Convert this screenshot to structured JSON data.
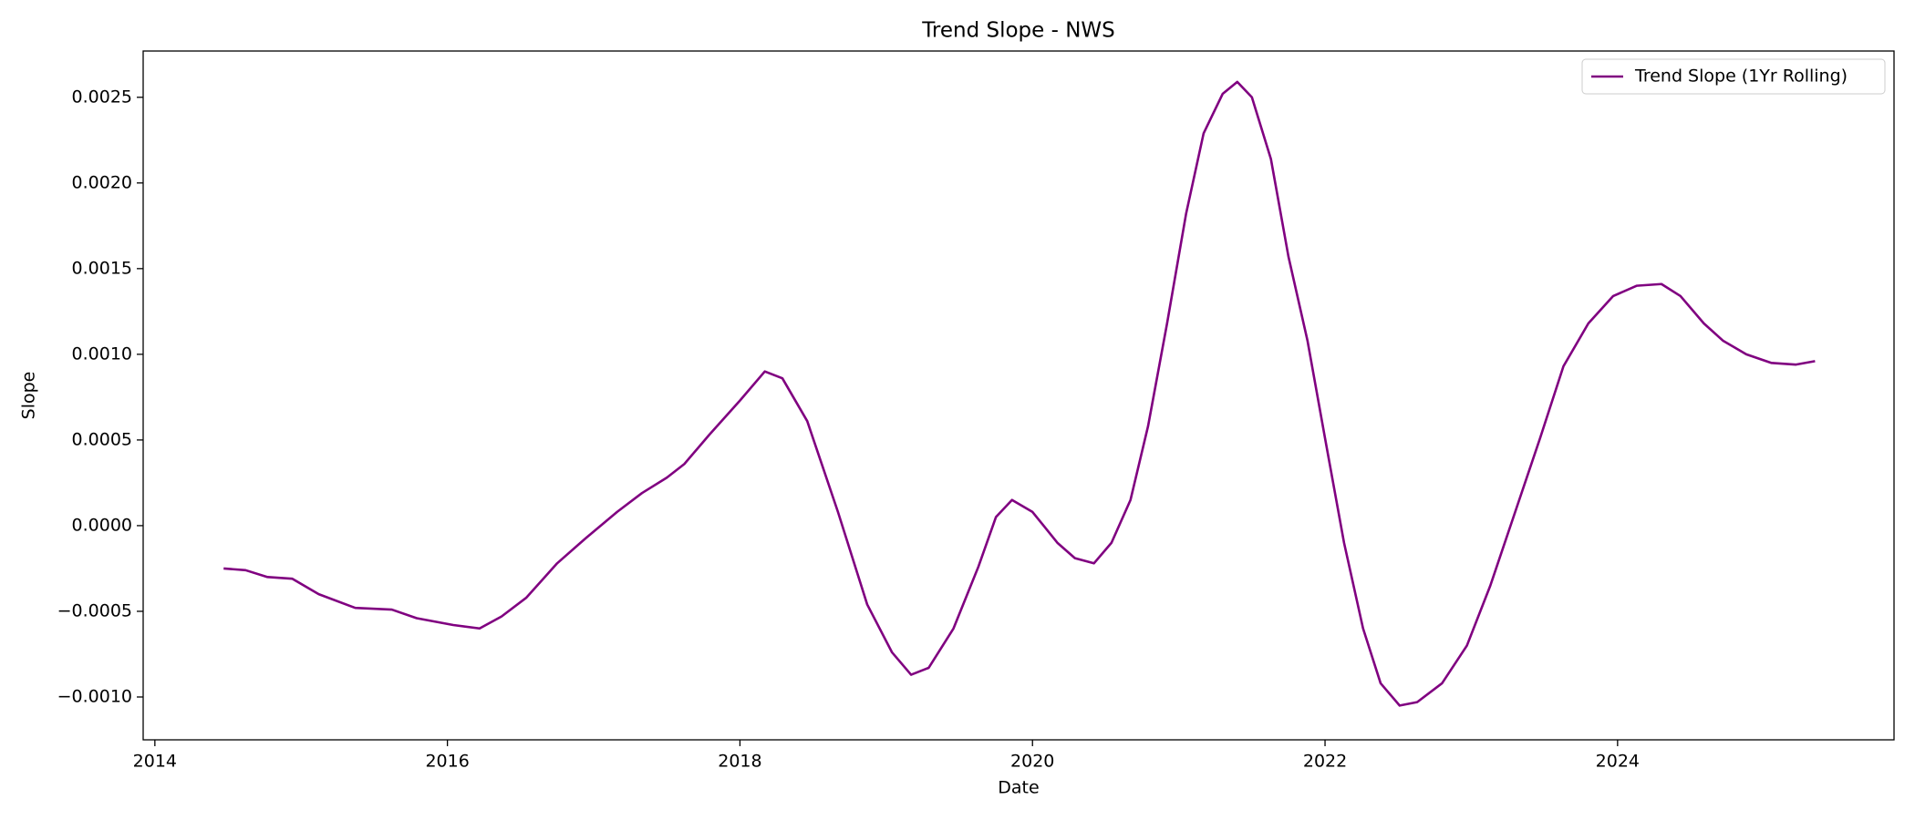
{
  "chart_data": {
    "type": "line",
    "title": "Trend Slope - NWS",
    "xlabel": "Date",
    "ylabel": "Slope",
    "x": [
      2014.47,
      2014.62,
      2014.77,
      2014.94,
      2015.12,
      2015.37,
      2015.62,
      2015.79,
      2016.04,
      2016.22,
      2016.37,
      2016.54,
      2016.75,
      2016.95,
      2017.16,
      2017.33,
      2017.5,
      2017.62,
      2017.79,
      2018.0,
      2018.17,
      2018.29,
      2018.46,
      2018.67,
      2018.87,
      2019.04,
      2019.17,
      2019.29,
      2019.46,
      2019.63,
      2019.75,
      2019.86,
      2020.0,
      2020.17,
      2020.29,
      2020.42,
      2020.54,
      2020.67,
      2020.79,
      2020.92,
      2021.05,
      2021.17,
      2021.3,
      2021.4,
      2021.5,
      2021.63,
      2021.75,
      2021.88,
      2022.0,
      2022.13,
      2022.26,
      2022.38,
      2022.51,
      2022.63,
      2022.8,
      2022.97,
      2023.13,
      2023.3,
      2023.47,
      2023.63,
      2023.8,
      2023.97,
      2024.13,
      2024.3,
      2024.43,
      2024.59,
      2024.72,
      2024.88,
      2025.05,
      2025.22,
      2025.35
    ],
    "series": [
      {
        "name": "Trend Slope (1Yr Rolling)",
        "color": "#800080",
        "values": [
          -0.00025,
          -0.00026,
          -0.0003,
          -0.00031,
          -0.0004,
          -0.00048,
          -0.00049,
          -0.00054,
          -0.00058,
          -0.0006,
          -0.00053,
          -0.00042,
          -0.00022,
          -7e-05,
          8e-05,
          0.00019,
          0.00028,
          0.00036,
          0.00053,
          0.00073,
          0.0009,
          0.00086,
          0.00061,
          8e-05,
          -0.00046,
          -0.00074,
          -0.00087,
          -0.00083,
          -0.0006,
          -0.00024,
          5e-05,
          0.00015,
          8e-05,
          -0.0001,
          -0.00019,
          -0.00022,
          -0.0001,
          0.00015,
          0.00058,
          0.00118,
          0.00182,
          0.00229,
          0.00252,
          0.00259,
          0.0025,
          0.00214,
          0.00157,
          0.00108,
          0.00051,
          -0.0001,
          -0.0006,
          -0.00092,
          -0.00105,
          -0.00103,
          -0.00092,
          -0.0007,
          -0.00035,
          8e-05,
          0.00051,
          0.00093,
          0.00118,
          0.00134,
          0.0014,
          0.00141,
          0.00134,
          0.00118,
          0.00108,
          0.001,
          0.00095,
          0.00094,
          0.00096
        ]
      }
    ],
    "xlim": [
      2013.92,
      2025.89
    ],
    "ylim": [
      -0.00125,
      0.00277
    ],
    "xticks": [
      2014,
      2016,
      2018,
      2020,
      2022,
      2024
    ],
    "yticks": [
      {
        "value": -0.001,
        "label": "−0.0010"
      },
      {
        "value": -0.0005,
        "label": "−0.0005"
      },
      {
        "value": 0,
        "label": "0.0000"
      },
      {
        "value": 0.0005,
        "label": "0.0005"
      },
      {
        "value": 0.001,
        "label": "0.0010"
      },
      {
        "value": 0.0015,
        "label": "0.0015"
      },
      {
        "value": 0.002,
        "label": "0.0020"
      },
      {
        "value": 0.0025,
        "label": "0.0025"
      }
    ],
    "grid": false,
    "legend": "upper right"
  }
}
